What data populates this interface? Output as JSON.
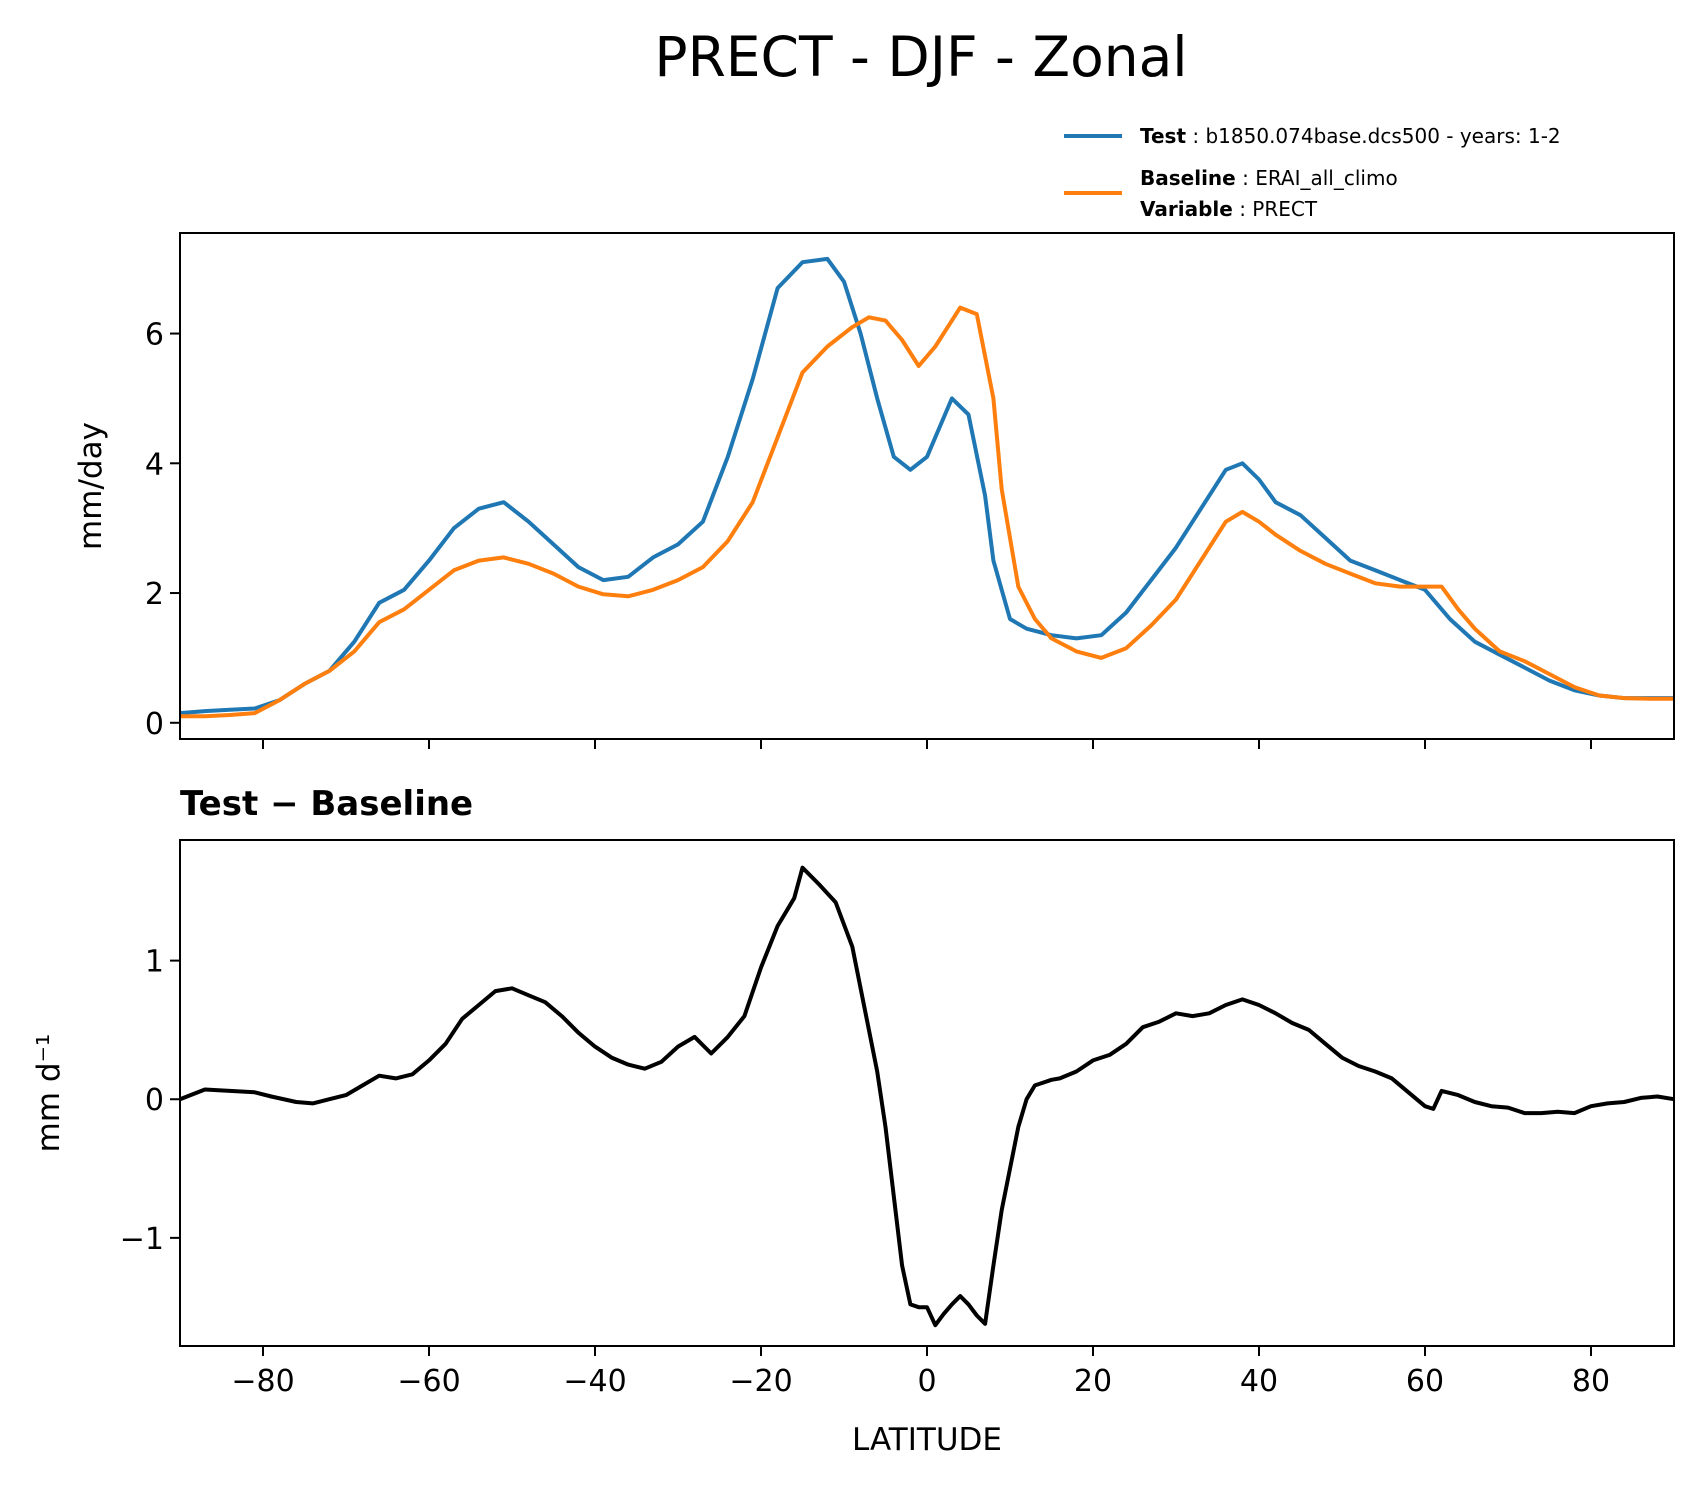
{
  "title": "PRECT - DJF - Zonal",
  "legend": {
    "test": {
      "key": "Test",
      "sep": " : ",
      "value": "b1850.074base.dcs500 - years: 1-2",
      "color": "#1f77b4"
    },
    "baseline": {
      "key": "Baseline",
      "sep": " : ",
      "value": "ERAI_all_climo",
      "color": "#ff7f0e"
    },
    "variable": {
      "key": "Variable",
      "sep": " : ",
      "value": "PRECT"
    }
  },
  "colors": {
    "test": "#1f77b4",
    "baseline": "#ff7f0e",
    "difference": "#000000"
  },
  "chart_data": [
    {
      "type": "line",
      "title": "",
      "xlabel": "",
      "ylabel": "mm/day",
      "xlim": [
        -90,
        90
      ],
      "ylim": [
        -0.25,
        7.55
      ],
      "yticks": [
        0,
        2,
        4,
        6
      ],
      "ytick_labels": [
        "0",
        "2",
        "4",
        "6"
      ],
      "xticks": [
        -80,
        -60,
        -40,
        -20,
        0,
        20,
        40,
        60,
        80
      ],
      "grid": false,
      "series": [
        {
          "key": "test",
          "color": "#1f77b4",
          "x": [
            -90,
            -87,
            -84,
            -81,
            -78,
            -75,
            -72,
            -69,
            -66,
            -63,
            -60,
            -57,
            -54,
            -51,
            -48,
            -45,
            -42,
            -39,
            -36,
            -33,
            -30,
            -27,
            -24,
            -21,
            -18,
            -15,
            -12,
            -10,
            -8,
            -6,
            -4,
            -2,
            0,
            2,
            3,
            5,
            7,
            8,
            10,
            12,
            15,
            18,
            21,
            24,
            27,
            30,
            33,
            36,
            38,
            40,
            42,
            45,
            48,
            51,
            54,
            57,
            60,
            63,
            66,
            69,
            72,
            75,
            78,
            81,
            84,
            87,
            90
          ],
          "values": [
            0.15,
            0.18,
            0.2,
            0.22,
            0.35,
            0.6,
            0.8,
            1.25,
            1.85,
            2.05,
            2.5,
            3.0,
            3.3,
            3.4,
            3.1,
            2.75,
            2.4,
            2.2,
            2.25,
            2.55,
            2.75,
            3.1,
            4.1,
            5.3,
            6.7,
            7.1,
            7.15,
            6.8,
            6.0,
            5.0,
            4.1,
            3.9,
            4.1,
            4.7,
            5.0,
            4.75,
            3.5,
            2.5,
            1.6,
            1.45,
            1.35,
            1.3,
            1.35,
            1.7,
            2.2,
            2.7,
            3.3,
            3.9,
            4.0,
            3.75,
            3.4,
            3.2,
            2.85,
            2.5,
            2.35,
            2.2,
            2.05,
            1.6,
            1.25,
            1.05,
            0.85,
            0.65,
            0.5,
            0.42,
            0.38,
            0.38,
            0.38
          ]
        },
        {
          "key": "baseline",
          "color": "#ff7f0e",
          "x": [
            -90,
            -87,
            -84,
            -81,
            -78,
            -75,
            -72,
            -69,
            -66,
            -63,
            -60,
            -57,
            -54,
            -51,
            -48,
            -45,
            -42,
            -39,
            -36,
            -33,
            -30,
            -27,
            -24,
            -21,
            -18,
            -15,
            -12,
            -9,
            -7,
            -5,
            -3,
            -1,
            1,
            3,
            4,
            6,
            8,
            9,
            11,
            13,
            15,
            18,
            21,
            24,
            27,
            30,
            33,
            36,
            38,
            40,
            42,
            45,
            48,
            51,
            54,
            57,
            60,
            62,
            64,
            66,
            69,
            72,
            75,
            78,
            81,
            84,
            87,
            90
          ],
          "values": [
            0.1,
            0.1,
            0.12,
            0.15,
            0.35,
            0.6,
            0.8,
            1.1,
            1.55,
            1.75,
            2.05,
            2.35,
            2.5,
            2.55,
            2.45,
            2.3,
            2.1,
            1.98,
            1.95,
            2.05,
            2.2,
            2.4,
            2.8,
            3.4,
            4.4,
            5.4,
            5.8,
            6.1,
            6.25,
            6.2,
            5.9,
            5.5,
            5.8,
            6.2,
            6.4,
            6.3,
            5.0,
            3.6,
            2.1,
            1.6,
            1.3,
            1.1,
            1.0,
            1.15,
            1.5,
            1.9,
            2.5,
            3.1,
            3.25,
            3.1,
            2.9,
            2.65,
            2.45,
            2.3,
            2.15,
            2.1,
            2.1,
            2.1,
            1.75,
            1.45,
            1.1,
            0.95,
            0.75,
            0.55,
            0.42,
            0.38,
            0.37,
            0.37
          ]
        }
      ]
    },
    {
      "type": "line",
      "title": "Test − Baseline",
      "xlabel": "LATITUDE",
      "ylabel": "mm d⁻¹",
      "xlim": [
        -90,
        90
      ],
      "ylim": [
        -1.78,
        1.87
      ],
      "yticks": [
        -1,
        0,
        1
      ],
      "ytick_labels": [
        "−1",
        "0",
        "1"
      ],
      "xticks": [
        -80,
        -60,
        -40,
        -20,
        0,
        20,
        40,
        60,
        80
      ],
      "xtick_labels": [
        "−80",
        "−60",
        "−40",
        "−20",
        "0",
        "20",
        "40",
        "60",
        "80"
      ],
      "grid": false,
      "series": [
        {
          "key": "difference",
          "color": "#000000",
          "x": [
            -90,
            -87,
            -84,
            -81,
            -79,
            -76,
            -74,
            -72,
            -70,
            -68,
            -66,
            -64,
            -62,
            -60,
            -58,
            -56,
            -54,
            -52,
            -50,
            -48,
            -46,
            -44,
            -42,
            -40,
            -38,
            -36,
            -34,
            -32,
            -30,
            -28,
            -26,
            -24,
            -22,
            -20,
            -18,
            -16,
            -15,
            -13,
            -11,
            -9,
            -7,
            -6,
            -5,
            -4,
            -3,
            -2,
            -1,
            0,
            1,
            2,
            3,
            4,
            5,
            6,
            7,
            8,
            9,
            10,
            11,
            12,
            13,
            14,
            15,
            16,
            18,
            20,
            22,
            24,
            26,
            28,
            30,
            32,
            34,
            36,
            38,
            40,
            42,
            44,
            46,
            48,
            50,
            52,
            54,
            56,
            58,
            60,
            61,
            62,
            64,
            66,
            68,
            70,
            72,
            74,
            76,
            78,
            80,
            82,
            84,
            86,
            88,
            90
          ],
          "values": [
            0.0,
            0.07,
            0.06,
            0.05,
            0.02,
            -0.02,
            -0.03,
            0.0,
            0.03,
            0.1,
            0.17,
            0.15,
            0.18,
            0.28,
            0.4,
            0.58,
            0.68,
            0.78,
            0.8,
            0.75,
            0.7,
            0.6,
            0.48,
            0.38,
            0.3,
            0.25,
            0.22,
            0.27,
            0.38,
            0.45,
            0.33,
            0.45,
            0.6,
            0.95,
            1.25,
            1.45,
            1.67,
            1.55,
            1.42,
            1.1,
            0.5,
            0.2,
            -0.2,
            -0.7,
            -1.2,
            -1.48,
            -1.5,
            -1.5,
            -1.63,
            -1.55,
            -1.48,
            -1.42,
            -1.48,
            -1.56,
            -1.62,
            -1.2,
            -0.8,
            -0.5,
            -0.2,
            0.0,
            0.1,
            0.12,
            0.14,
            0.15,
            0.2,
            0.28,
            0.32,
            0.4,
            0.52,
            0.56,
            0.62,
            0.6,
            0.62,
            0.68,
            0.72,
            0.68,
            0.62,
            0.55,
            0.5,
            0.4,
            0.3,
            0.24,
            0.2,
            0.15,
            0.05,
            -0.05,
            -0.07,
            0.06,
            0.03,
            -0.02,
            -0.05,
            -0.06,
            -0.1,
            -0.1,
            -0.09,
            -0.1,
            -0.05,
            -0.03,
            -0.02,
            0.01,
            0.02,
            0.0
          ]
        }
      ]
    }
  ]
}
